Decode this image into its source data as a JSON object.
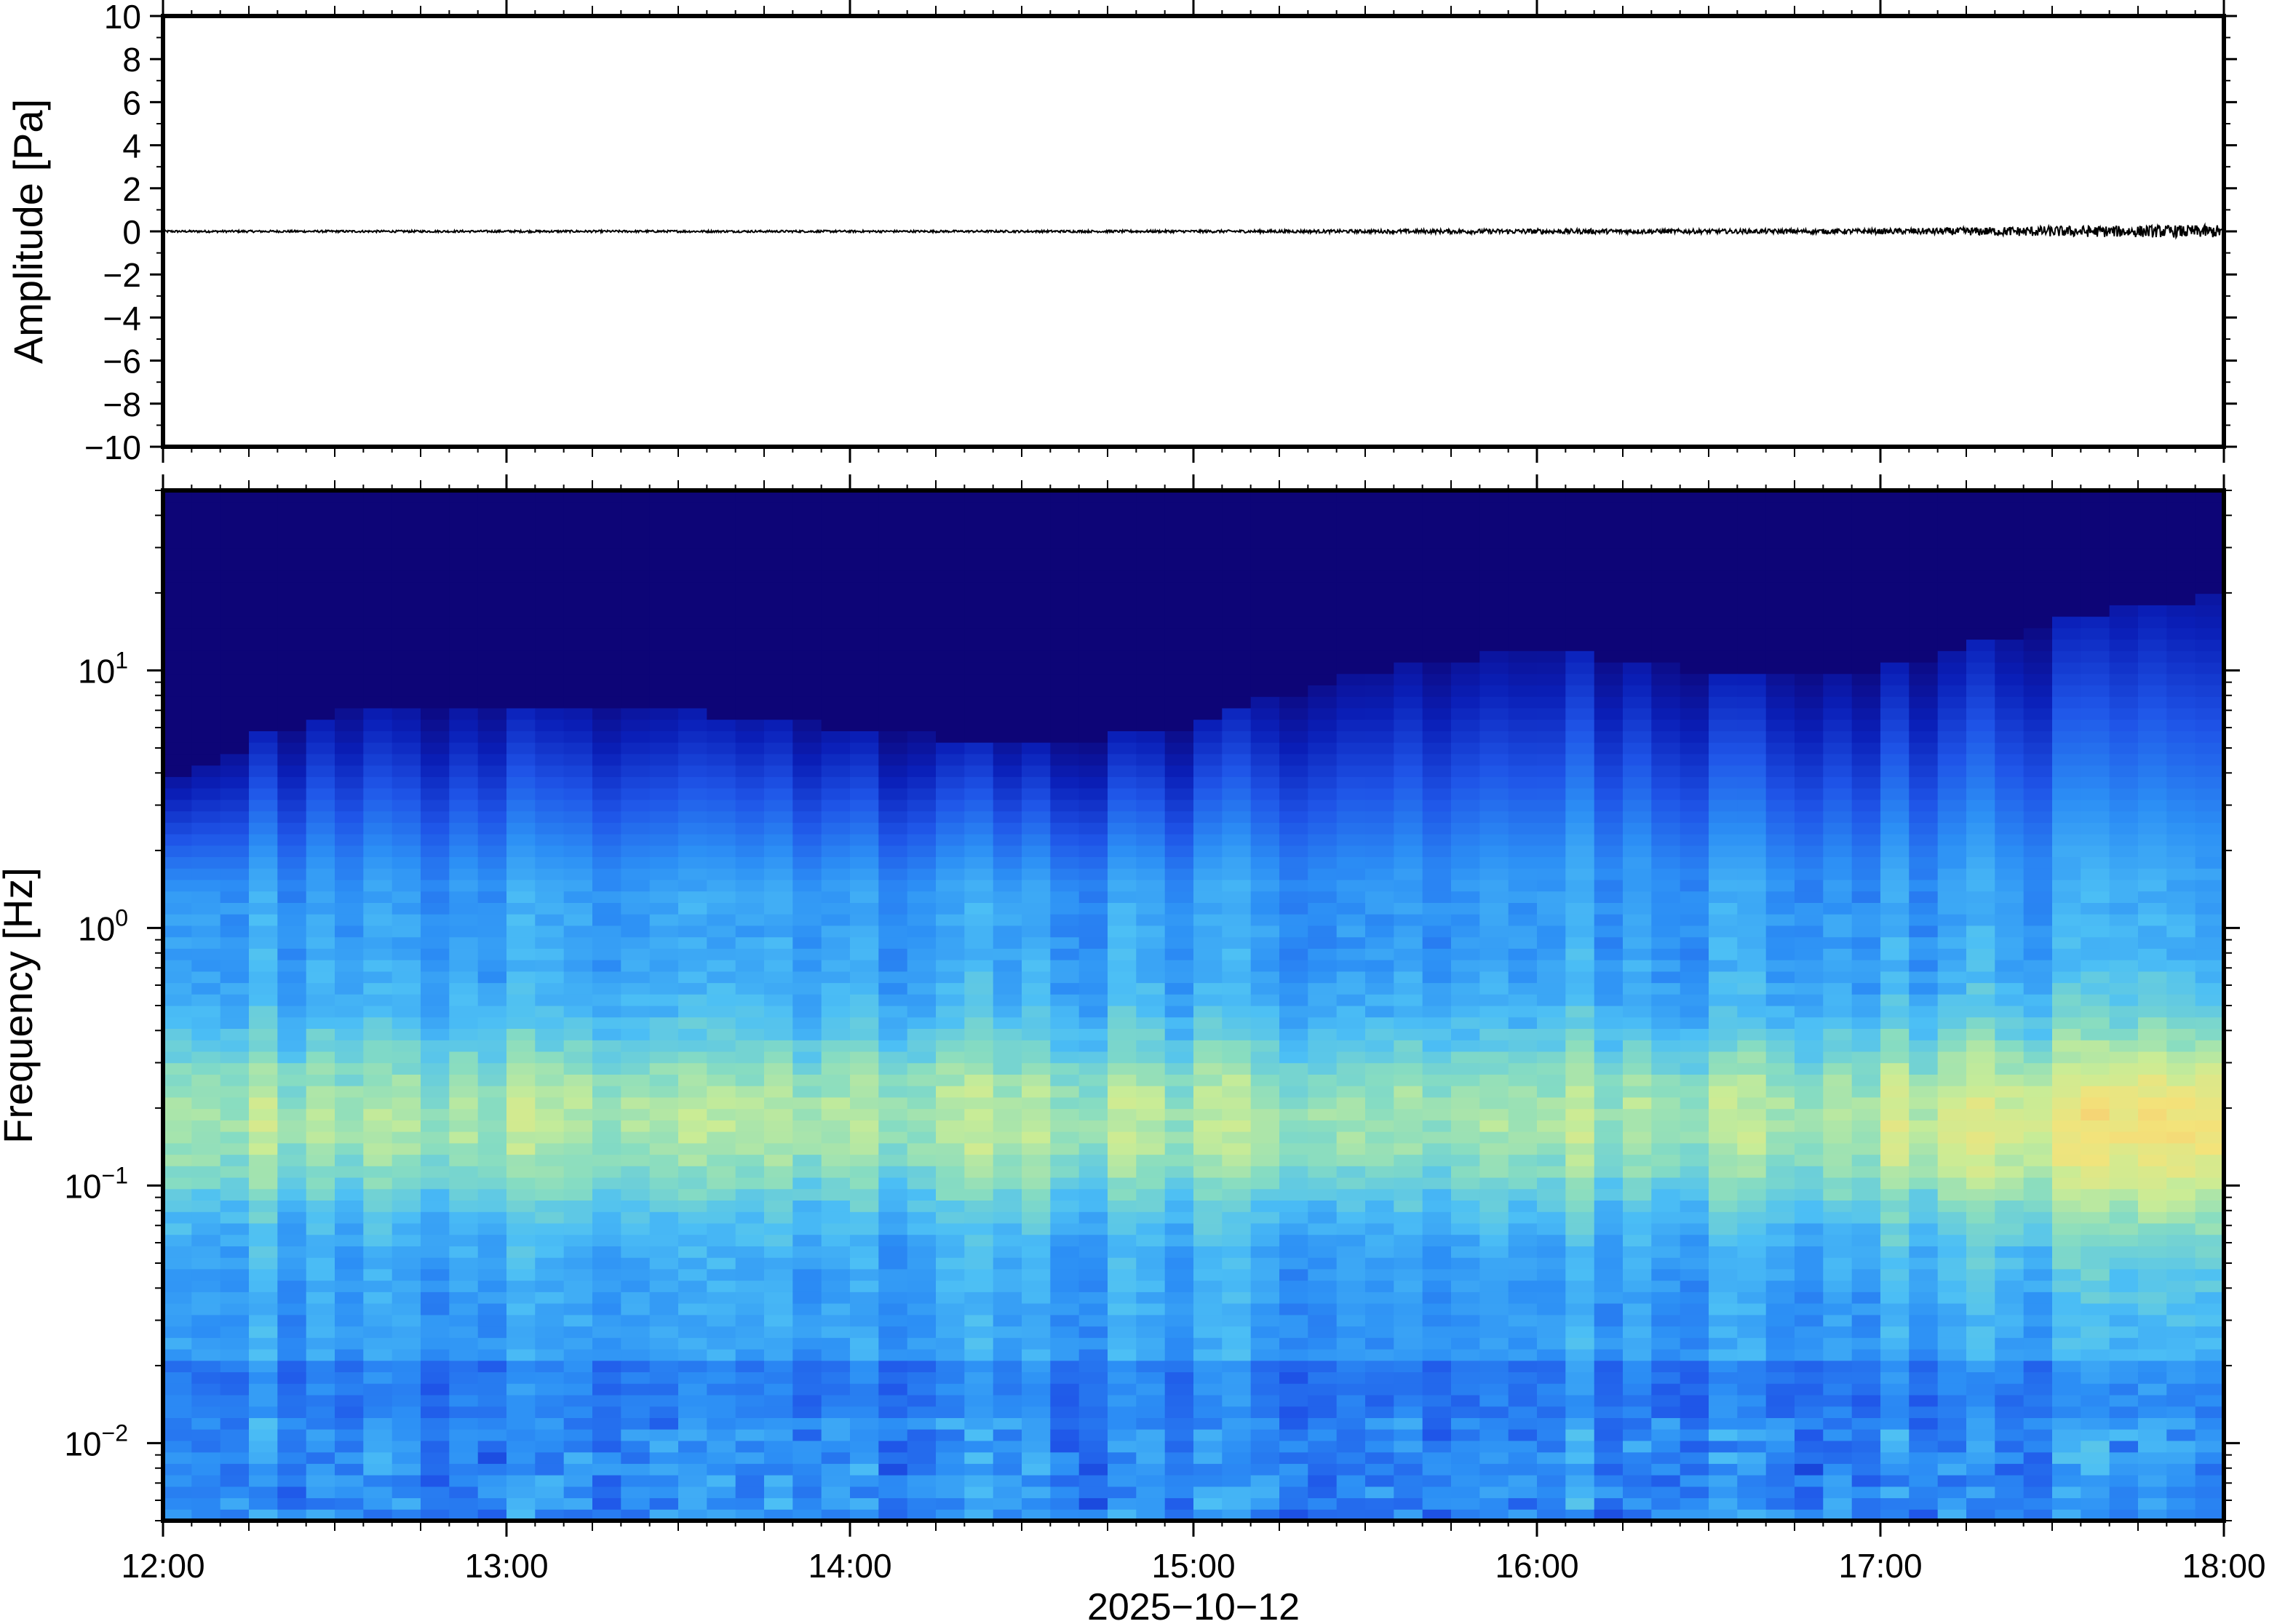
{
  "chart_data": [
    {
      "type": "line",
      "panel": "waveform",
      "ylabel": "Amplitude [Pa]",
      "ylim": [
        -10,
        10
      ],
      "yticks": [
        {
          "value": 10,
          "label": "10"
        },
        {
          "value": 8,
          "label": "8"
        },
        {
          "value": 6,
          "label": "6"
        },
        {
          "value": 4,
          "label": "4"
        },
        {
          "value": 2,
          "label": "2"
        },
        {
          "value": 0,
          "label": "0"
        },
        {
          "value": -2,
          "label": "−2"
        },
        {
          "value": -4,
          "label": "−4"
        },
        {
          "value": -6,
          "label": "−6"
        },
        {
          "value": -8,
          "label": "−8"
        },
        {
          "value": -10,
          "label": "−10"
        }
      ],
      "xlim": [
        "12:00",
        "18:00"
      ],
      "series": [
        {
          "x": [
            "12:00",
            "12:30",
            "13:00",
            "13:30",
            "14:00",
            "14:30",
            "15:00",
            "15:30",
            "16:00",
            "16:30",
            "17:00",
            "17:30",
            "18:00"
          ],
          "amplitude_envelope": [
            0.05,
            0.05,
            0.05,
            0.05,
            0.05,
            0.05,
            0.06,
            0.08,
            0.12,
            0.1,
            0.12,
            0.25,
            0.3
          ]
        }
      ],
      "color": "#000000"
    },
    {
      "type": "heatmap",
      "panel": "spectrogram",
      "ylabel": "Frequency [Hz]",
      "xlabel": "2025−10−12",
      "yscale": "log",
      "ylim": [
        0.005,
        50
      ],
      "yticks": [
        {
          "value": 0.01,
          "base": "10",
          "exp": "−2"
        },
        {
          "value": 0.1,
          "base": "10",
          "exp": "−1"
        },
        {
          "value": 1,
          "base": "10",
          "exp": "0"
        },
        {
          "value": 10,
          "base": "10",
          "exp": "1"
        }
      ],
      "xticks": [
        "12:00",
        "13:00",
        "14:00",
        "15:00",
        "16:00",
        "17:00",
        "18:00"
      ],
      "colormap": [
        "#0d0577",
        "#0a1fb8",
        "#1f55e8",
        "#2c8ff5",
        "#4cbff5",
        "#86dcc2",
        "#c9ec96",
        "#f3e37a",
        "#f9b36a"
      ],
      "time_columns": [
        "12:00",
        "12:30",
        "13:00",
        "13:30",
        "14:00",
        "14:30",
        "15:00",
        "15:30",
        "16:00",
        "16:30",
        "17:00",
        "17:30",
        "18:00"
      ],
      "energy_ceiling_hz": [
        3.5,
        7,
        7,
        7,
        6,
        5,
        6,
        10,
        12,
        10,
        10,
        15,
        20
      ]
    }
  ]
}
